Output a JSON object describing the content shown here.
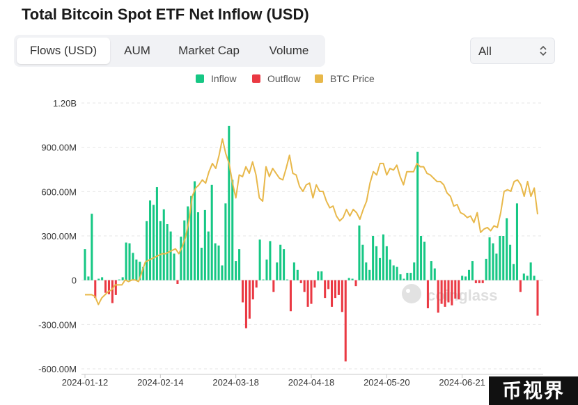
{
  "page": {
    "title": "Total Bitcoin Spot ETF Net Inflow (USD)",
    "tabs": [
      "Flows (USD)",
      "AUM",
      "Market Cap",
      "Volume"
    ],
    "active_tab": "Flows (USD)",
    "range_select": "All",
    "watermark": "coinglass",
    "corner_badge": "币视界"
  },
  "colors": {
    "inflow": "#16c784",
    "outflow": "#ea3943",
    "btc_price": "#e8b84a",
    "grid": "#e6e6e6",
    "axis_text": "#333333"
  },
  "chart_data": {
    "type": "bar",
    "title": "Total Bitcoin Spot ETF Net Inflow (USD)",
    "legend": [
      "Inflow",
      "Outflow",
      "BTC Price"
    ],
    "legend_position": "top-center",
    "grid": "horizontal dashed",
    "y_ticks": [
      "1.20B",
      "900.00M",
      "600.00M",
      "300.00M",
      "0",
      "-300.00M",
      "-600.00M"
    ],
    "ylim": [
      -600,
      1200
    ],
    "y_unit": "millions USD",
    "x_ticks": [
      "2024-01-12",
      "2024-02-14",
      "2024-03-18",
      "2024-04-18",
      "2024-05-20",
      "2024-06-21"
    ],
    "x_tick_index": [
      0,
      22,
      44,
      66,
      88,
      110
    ],
    "flows": [
      210,
      25,
      450,
      -120,
      10,
      20,
      -85,
      -95,
      -155,
      -100,
      5,
      20,
      255,
      250,
      185,
      140,
      125,
      90,
      400,
      540,
      510,
      630,
      400,
      480,
      380,
      330,
      180,
      -25,
      295,
      405,
      500,
      570,
      670,
      460,
      220,
      475,
      330,
      645,
      250,
      235,
      100,
      520,
      1045,
      680,
      130,
      210,
      -150,
      -325,
      -260,
      -130,
      -50,
      275,
      5,
      140,
      265,
      -80,
      120,
      240,
      210,
      5,
      -210,
      120,
      70,
      -20,
      -80,
      -180,
      -160,
      -50,
      60,
      60,
      -120,
      -60,
      -180,
      -120,
      -100,
      -215,
      -550,
      15,
      10,
      -40,
      370,
      240,
      120,
      70,
      300,
      230,
      150,
      310,
      230,
      140,
      100,
      90,
      40,
      10,
      50,
      50,
      120,
      870,
      300,
      260,
      -190,
      130,
      80,
      -220,
      -160,
      -180,
      -150,
      -170,
      -125,
      -130,
      30,
      25,
      70,
      130,
      -20,
      -20,
      -20,
      145,
      290,
      250,
      180,
      300,
      300,
      420,
      240,
      110,
      520,
      -80,
      45,
      30,
      120,
      30,
      -240
    ],
    "btc_price_index": [
      95,
      95,
      95,
      94,
      89,
      93,
      95,
      97,
      98,
      101,
      101,
      101,
      104,
      103,
      104,
      104,
      103,
      109,
      115,
      116,
      117,
      118,
      119,
      120,
      120,
      121,
      122,
      123,
      120,
      124,
      130,
      140,
      155,
      160,
      162,
      165,
      163,
      170,
      175,
      172,
      180,
      190,
      181,
      175,
      163,
      154,
      168,
      167,
      173,
      169,
      176,
      168,
      154,
      152,
      173,
      167,
      172,
      169,
      166,
      165,
      172,
      180,
      169,
      168,
      161,
      158,
      162,
      163,
      154,
      162,
      158,
      158,
      152,
      148,
      149,
      143,
      140,
      142,
      147,
      143,
      147,
      145,
      141,
      147,
      152,
      163,
      170,
      168,
      175,
      175,
      168,
      172,
      171,
      174,
      167,
      162,
      170,
      170,
      170,
      175,
      173,
      173,
      169,
      168,
      166,
      164,
      164,
      162,
      157,
      155,
      149,
      150,
      145,
      144,
      142,
      143,
      139,
      145,
      133,
      135,
      136,
      134,
      137,
      136,
      145,
      158,
      159,
      158,
      164,
      165,
      162,
      155,
      164,
      155,
      160,
      144
    ],
    "btc_price_note": "BTC Price is an overlay on a secondary unlabeled axis; values are relative index estimates"
  }
}
